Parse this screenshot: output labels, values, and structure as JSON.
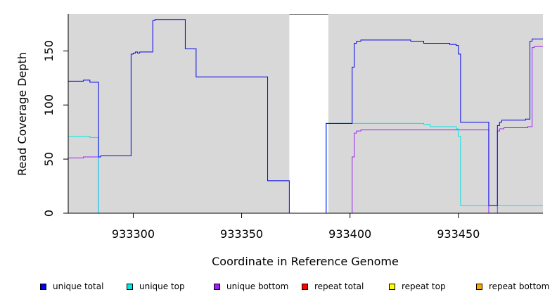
{
  "chart_data": {
    "type": "line",
    "xlabel": "Coordinate in Reference Genome",
    "ylabel": "Read Coverage Depth",
    "xlim": [
      933270,
      933489
    ],
    "ylim": [
      0,
      184
    ],
    "xticks": [
      933300,
      933350,
      933400,
      933450
    ],
    "yticks": [
      0,
      50,
      100,
      150
    ],
    "grey_regions": [
      [
        933270,
        933372
      ],
      [
        933390,
        933489
      ]
    ],
    "series": [
      {
        "name": "unique total",
        "color": "#0000ee",
        "points": [
          [
            933270,
            122
          ],
          [
            933277,
            122
          ],
          [
            933277,
            123
          ],
          [
            933280,
            123
          ],
          [
            933280,
            121
          ],
          [
            933284,
            121
          ],
          [
            933284,
            52
          ],
          [
            933285,
            52
          ],
          [
            933285,
            53
          ],
          [
            933299,
            53
          ],
          [
            933299,
            147
          ],
          [
            933300,
            147
          ],
          [
            933300,
            148
          ],
          [
            933301,
            148
          ],
          [
            933301,
            149
          ],
          [
            933302,
            149
          ],
          [
            933302,
            148
          ],
          [
            933303,
            148
          ],
          [
            933303,
            149
          ],
          [
            933309,
            149
          ],
          [
            933309,
            178
          ],
          [
            933310,
            178
          ],
          [
            933310,
            179
          ],
          [
            933324,
            179
          ],
          [
            933324,
            152
          ],
          [
            933329,
            152
          ],
          [
            933329,
            126
          ],
          [
            933362,
            126
          ],
          [
            933362,
            30
          ],
          [
            933372,
            30
          ],
          [
            933372,
            0
          ],
          [
            933389,
            0
          ],
          [
            933389,
            83
          ],
          [
            933401,
            83
          ],
          [
            933401,
            135
          ],
          [
            933402,
            135
          ],
          [
            933402,
            157
          ],
          [
            933403,
            157
          ],
          [
            933403,
            159
          ],
          [
            933405,
            159
          ],
          [
            933405,
            160
          ],
          [
            933428,
            160
          ],
          [
            933428,
            159
          ],
          [
            933434,
            159
          ],
          [
            933434,
            157
          ],
          [
            933446,
            157
          ],
          [
            933446,
            156
          ],
          [
            933449,
            156
          ],
          [
            933449,
            155
          ],
          [
            933450,
            155
          ],
          [
            933450,
            147
          ],
          [
            933451,
            147
          ],
          [
            933451,
            84
          ],
          [
            933464,
            84
          ],
          [
            933464,
            7
          ],
          [
            933468,
            7
          ],
          [
            933468,
            81
          ],
          [
            933469,
            81
          ],
          [
            933469,
            84
          ],
          [
            933470,
            84
          ],
          [
            933470,
            86
          ],
          [
            933481,
            86
          ],
          [
            933481,
            87
          ],
          [
            933483,
            87
          ],
          [
            933483,
            159
          ],
          [
            933484,
            159
          ],
          [
            933484,
            161
          ],
          [
            933489,
            161
          ]
        ]
      },
      {
        "name": "unique top",
        "color": "#00e5e5",
        "points": [
          [
            933270,
            71
          ],
          [
            933280,
            71
          ],
          [
            933280,
            70
          ],
          [
            933284,
            70
          ],
          [
            933284,
            0
          ],
          [
            933389,
            0
          ],
          [
            933389,
            83
          ],
          [
            933434,
            83
          ],
          [
            933434,
            82
          ],
          [
            933437,
            82
          ],
          [
            933437,
            80
          ],
          [
            933449,
            80
          ],
          [
            933449,
            78
          ],
          [
            933450,
            78
          ],
          [
            933450,
            71
          ],
          [
            933451,
            71
          ],
          [
            933451,
            7
          ],
          [
            933489,
            7
          ]
        ]
      },
      {
        "name": "unique bottom",
        "color": "#a020f0",
        "points": [
          [
            933270,
            51
          ],
          [
            933277,
            51
          ],
          [
            933277,
            52
          ],
          [
            933284,
            52
          ],
          [
            933284,
            0
          ],
          [
            933401,
            0
          ],
          [
            933401,
            52
          ],
          [
            933402,
            52
          ],
          [
            933402,
            74
          ],
          [
            933403,
            74
          ],
          [
            933403,
            76
          ],
          [
            933405,
            76
          ],
          [
            933405,
            77
          ],
          [
            933464,
            77
          ],
          [
            933464,
            0
          ],
          [
            933468,
            0
          ],
          [
            933468,
            76
          ],
          [
            933469,
            76
          ],
          [
            933469,
            78
          ],
          [
            933471,
            78
          ],
          [
            933471,
            79
          ],
          [
            933482,
            79
          ],
          [
            933482,
            80
          ],
          [
            933484,
            80
          ],
          [
            933484,
            153
          ],
          [
            933485,
            153
          ],
          [
            933485,
            154
          ],
          [
            933489,
            154
          ]
        ]
      },
      {
        "name": "repeat total",
        "color": "#ff0000",
        "points": [
          [
            933270,
            0
          ],
          [
            933489,
            0
          ]
        ]
      },
      {
        "name": "repeat top",
        "color": "#ffff00",
        "points": [
          [
            933270,
            0
          ],
          [
            933489,
            0
          ]
        ]
      },
      {
        "name": "repeat bottom",
        "color": "#ffa500",
        "points": [
          [
            933270,
            0
          ],
          [
            933489,
            0
          ]
        ]
      }
    ]
  },
  "legend": [
    {
      "label": "unique total",
      "color": "#0000ee"
    },
    {
      "label": "unique top",
      "color": "#00e5e5"
    },
    {
      "label": "unique bottom",
      "color": "#a020f0"
    },
    {
      "label": "repeat total",
      "color": "#ff0000"
    },
    {
      "label": "repeat top",
      "color": "#ffff00"
    },
    {
      "label": "repeat bottom",
      "color": "#ffa500"
    }
  ]
}
